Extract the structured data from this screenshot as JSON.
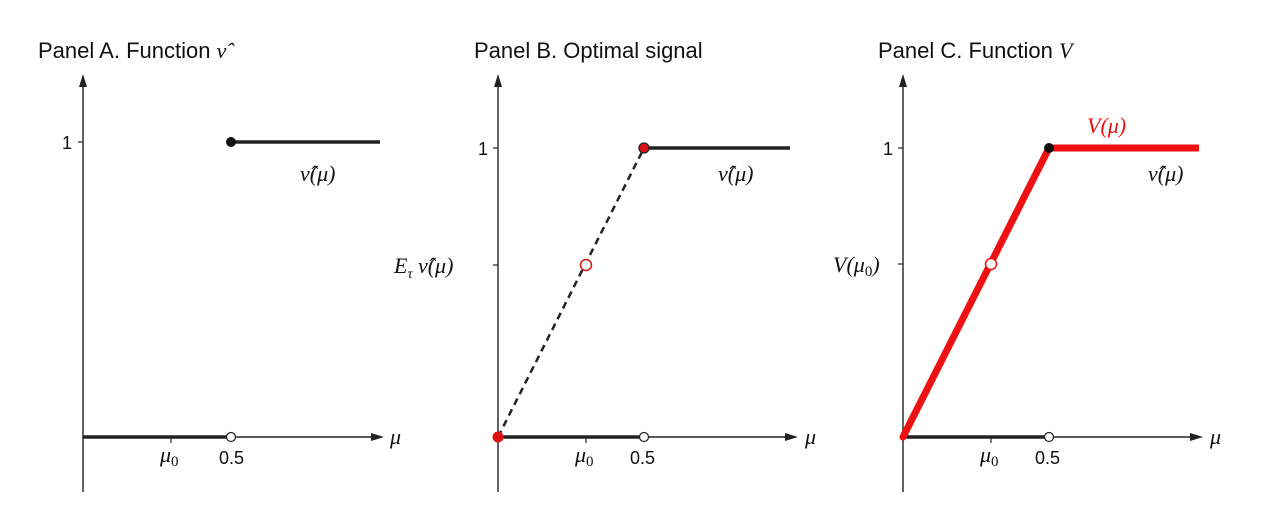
{
  "chart_data": [
    {
      "panel": "A",
      "type": "line",
      "title": "Panel A. Function ν̂",
      "xlabel": "μ",
      "x_ticks": [
        "μ₀",
        "0.5"
      ],
      "y_ticks": [
        "1"
      ],
      "series": [
        {
          "name": "ν̂(μ)",
          "segments": [
            {
              "x": [
                0,
                0.5
              ],
              "y": [
                0,
                0
              ],
              "style": "solid",
              "color": "#222222"
            },
            {
              "x": [
                0.5,
                1
              ],
              "y": [
                1,
                1
              ],
              "style": "solid",
              "color": "#222222"
            }
          ]
        }
      ],
      "markers": [
        {
          "x": 0.5,
          "y": 1,
          "fill": "#111111",
          "stroke": "#111111"
        },
        {
          "x": 0.5,
          "y": 0,
          "fill": "#ffffff",
          "stroke": "#222222"
        }
      ]
    },
    {
      "panel": "B",
      "type": "line",
      "title": "Panel B. Optimal signal",
      "xlabel": "μ",
      "x_ticks": [
        "μ₀",
        "0.5"
      ],
      "y_ticks": [
        "1",
        "Eτ ν̂(μ)"
      ],
      "series": [
        {
          "name": "ν̂(μ)",
          "segments": [
            {
              "x": [
                0,
                0.5
              ],
              "y": [
                0,
                0
              ],
              "style": "solid",
              "color": "#222222"
            },
            {
              "x": [
                0.5,
                1
              ],
              "y": [
                1,
                1
              ],
              "style": "solid",
              "color": "#222222"
            },
            {
              "x": [
                0,
                0.5
              ],
              "y": [
                0,
                1
              ],
              "style": "dashed",
              "color": "#222222"
            }
          ]
        }
      ],
      "markers": [
        {
          "x": 0,
          "y": 0,
          "fill": "#dd1111",
          "stroke": "#dd1111"
        },
        {
          "x": 0.5,
          "y": 1,
          "fill": "#dd1111",
          "stroke": "#222222"
        },
        {
          "x": 0.25,
          "y": 0.5,
          "fill": "#ffffff",
          "stroke": "#dd1111"
        },
        {
          "x": 0.5,
          "y": 0,
          "fill": "#ffffff",
          "stroke": "#222222"
        }
      ]
    },
    {
      "panel": "C",
      "type": "line",
      "title": "Panel C. Function V",
      "xlabel": "μ",
      "x_ticks": [
        "μ₀",
        "0.5"
      ],
      "y_ticks": [
        "1",
        "V(μ₀)"
      ],
      "series": [
        {
          "name": "ν̂(μ)",
          "segments": [
            {
              "x": [
                0,
                0.5
              ],
              "y": [
                0,
                0
              ],
              "style": "solid",
              "color": "#222222"
            },
            {
              "x": [
                0.5,
                1
              ],
              "y": [
                1,
                1
              ],
              "style": "solid",
              "color": "#222222"
            }
          ]
        },
        {
          "name": "V(μ)",
          "segments": [
            {
              "x": [
                0,
                0.5
              ],
              "y": [
                0,
                1
              ],
              "style": "thick",
              "color": "#ee1111"
            },
            {
              "x": [
                0.5,
                1
              ],
              "y": [
                1,
                1
              ],
              "style": "thick",
              "color": "#ee1111"
            }
          ]
        }
      ],
      "markers": [
        {
          "x": 0.5,
          "y": 1,
          "fill": "#111111",
          "stroke": "#111111"
        },
        {
          "x": 0.25,
          "y": 0.5,
          "fill": "#ffffff",
          "stroke": "#ee1111"
        },
        {
          "x": 0.5,
          "y": 0,
          "fill": "#ffffff",
          "stroke": "#222222"
        }
      ]
    }
  ]
}
